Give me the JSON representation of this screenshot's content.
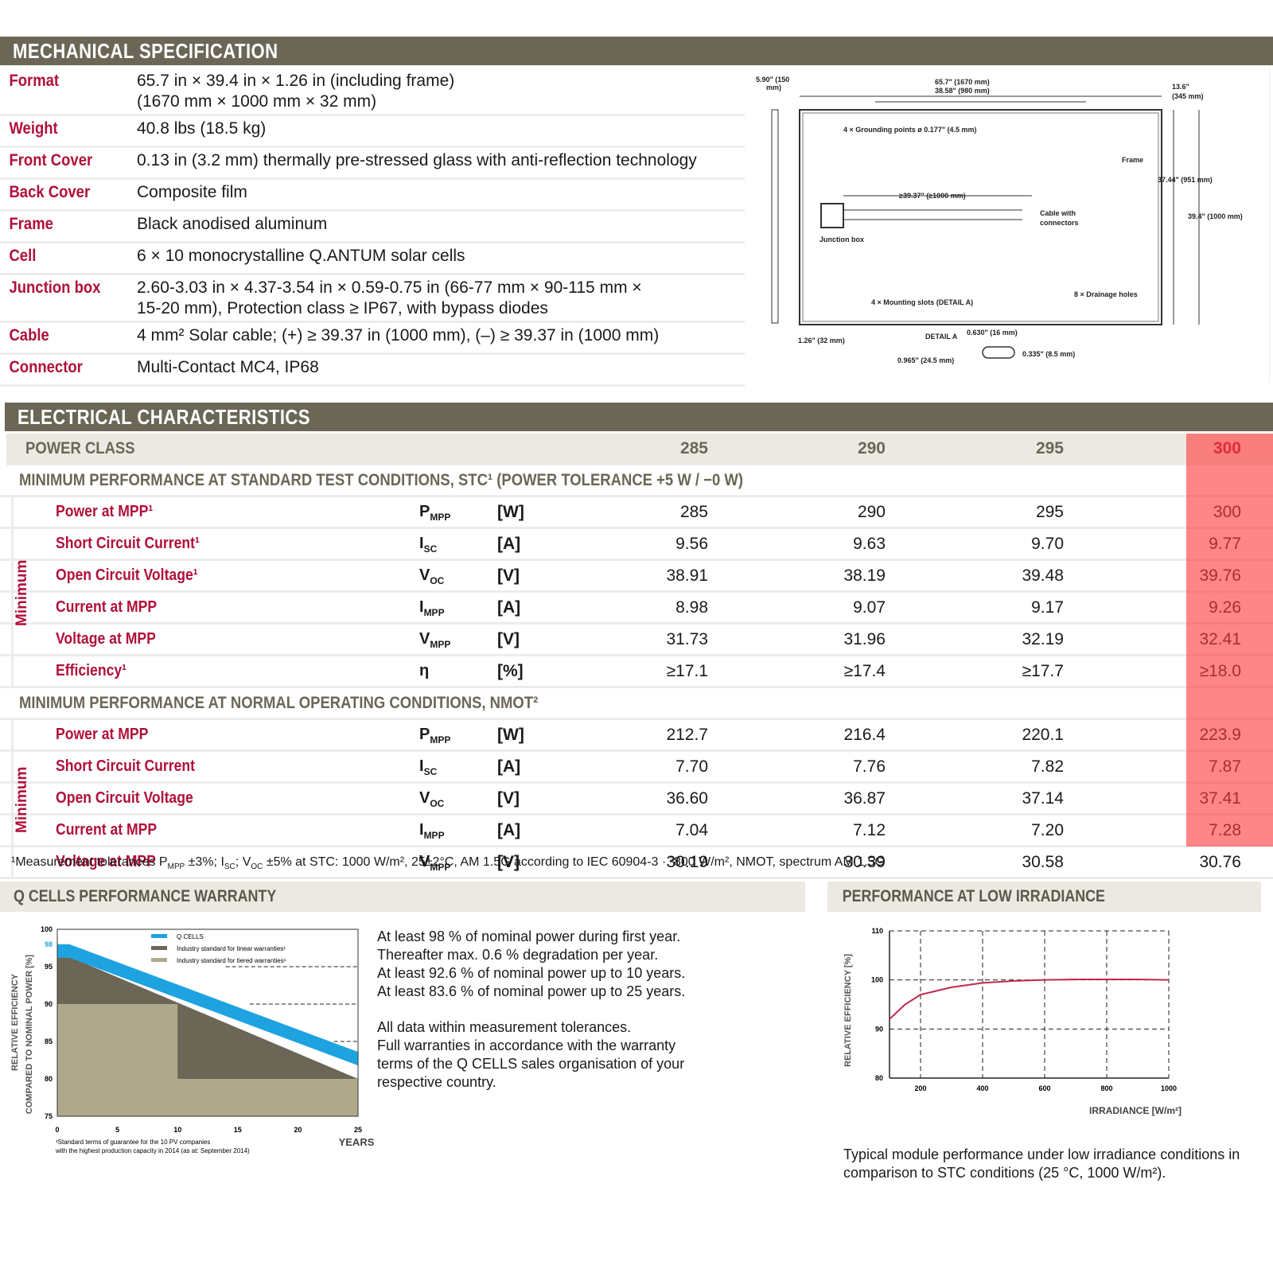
{
  "mechanical": {
    "title": "MECHANICAL SPECIFICATION",
    "rows": [
      {
        "key": "Format",
        "value": "65.7 in × 39.4 in × 1.26 in (including frame)",
        "value2": "(1670 mm × 1000 mm × 32 mm)"
      },
      {
        "key": "Weight",
        "value": "40.8 lbs (18.5 kg)"
      },
      {
        "key": "Front Cover",
        "value": "0.13 in (3.2 mm) thermally pre-stressed glass with anti-reflection technology"
      },
      {
        "key": "Back Cover",
        "value": "Composite film"
      },
      {
        "key": "Frame",
        "value": "Black anodised aluminum"
      },
      {
        "key": "Cell",
        "value": "6 × 10 monocrystalline Q.ANTUM solar cells"
      },
      {
        "key": "Junction box",
        "value": "2.60-3.03 in × 4.37-3.54 in × 0.59-0.75 in (66-77 mm × 90-115 mm ×",
        "value2": "15-20 mm), Protection class ≥ IP67, with bypass diodes"
      },
      {
        "key": "Cable",
        "value": "4 mm² Solar cable; (+) ≥ 39.37 in (1000 mm), (–) ≥ 39.37 in (1000 mm)"
      },
      {
        "key": "Connector",
        "value": "Multi-Contact MC4, IP68"
      }
    ],
    "diagram": {
      "thickness_label": "5.90\" (150",
      "thickness_label2": "mm)",
      "length_label": "65.7\" (1670 mm)",
      "inner_length_label": "38.58\" (980 mm)",
      "right_label": "13.6\"",
      "right_label2": "(345 mm)",
      "grounding": "4 × Grounding points ø 0.177\" (4.5 mm)",
      "frame": "Frame",
      "height_inner": "37.44\" (951 mm)",
      "height_outer": "39.4\" (1000 mm)",
      "cable_len": "≥39.37\" (≥1000 mm)",
      "cable_conn": "Cable with",
      "cable_conn2": "connectors",
      "junction": "Junction box",
      "mounting": "4 × Mounting slots (DETAIL A)",
      "drainage": "8 × Drainage holes",
      "frame_depth": "1.26\" (32 mm)",
      "detail": "DETAIL A",
      "detail_w": "0.630\" (16 mm)",
      "detail_h": "0.335\" (8.5 mm)",
      "detail_l": "0.965\" (24.5 mm)"
    }
  },
  "electrical": {
    "title": "ELECTRICAL CHARACTERISTICS",
    "power_class_label": "POWER CLASS",
    "classes": [
      "285",
      "290",
      "295",
      "300"
    ],
    "stc_heading": "MINIMUM PERFORMANCE AT STANDARD TEST CONDITIONS, STC¹ (POWER TOLERANCE +5 W / −0 W)",
    "nmot_heading": "MINIMUM PERFORMANCE AT NORMAL OPERATING CONDITIONS, NMOT²",
    "side_label": "Minimum",
    "stc_rows": [
      {
        "label": "Power at MPP¹",
        "sym": "P",
        "sub": "MPP",
        "unit": "[W]",
        "vals": [
          "285",
          "290",
          "295",
          "300"
        ]
      },
      {
        "label": "Short Circuit Current¹",
        "sym": "I",
        "sub": "SC",
        "unit": "[A]",
        "vals": [
          "9.56",
          "9.63",
          "9.70",
          "9.77"
        ]
      },
      {
        "label": "Open Circuit Voltage¹",
        "sym": "V",
        "sub": "OC",
        "unit": "[V]",
        "vals": [
          "38.91",
          "38.19",
          "39.48",
          "39.76"
        ]
      },
      {
        "label": "Current at MPP",
        "sym": "I",
        "sub": "MPP",
        "unit": "[A]",
        "vals": [
          "8.98",
          "9.07",
          "9.17",
          "9.26"
        ]
      },
      {
        "label": "Voltage at MPP",
        "sym": "V",
        "sub": "MPP",
        "unit": "[V]",
        "vals": [
          "31.73",
          "31.96",
          "32.19",
          "32.41"
        ]
      },
      {
        "label": "Efficiency¹",
        "sym": "η",
        "sub": "",
        "unit": "[%]",
        "vals": [
          "≥17.1",
          "≥17.4",
          "≥17.7",
          "≥18.0"
        ]
      }
    ],
    "nmot_rows": [
      {
        "label": "Power at MPP",
        "sym": "P",
        "sub": "MPP",
        "unit": "[W]",
        "vals": [
          "212.7",
          "216.4",
          "220.1",
          "223.9"
        ]
      },
      {
        "label": "Short Circuit Current",
        "sym": "I",
        "sub": "SC",
        "unit": "[A]",
        "vals": [
          "7.70",
          "7.76",
          "7.82",
          "7.87"
        ]
      },
      {
        "label": "Open Circuit Voltage",
        "sym": "V",
        "sub": "OC",
        "unit": "[V]",
        "vals": [
          "36.60",
          "36.87",
          "37.14",
          "37.41"
        ]
      },
      {
        "label": "Current at MPP",
        "sym": "I",
        "sub": "MPP",
        "unit": "[A]",
        "vals": [
          "7.04",
          "7.12",
          "7.20",
          "7.28"
        ]
      },
      {
        "label": "Voltage at MPP",
        "sym": "V",
        "sub": "MPP",
        "unit": "[V]",
        "vals": [
          "30.19",
          "30.39",
          "30.58",
          "30.76"
        ]
      }
    ],
    "footnote": "¹Measurement tolerances P",
    "footnote_sub": "MPP",
    "footnote_rest": " ±3%; I",
    "footnote_sub2": "SC",
    "footnote_rest2": "; V",
    "footnote_sub3": "OC",
    "footnote_rest3": " ±5% at STC: 1000 W/m², 25±2°C, AM 1.5G according to IEC 60904-3 · ²800 W/m², NMOT, spectrum AM 1.5G",
    "highlight_color": "#ff3c3c"
  },
  "warranty": {
    "title": "Q CELLS PERFORMANCE WARRANTY",
    "text_lines_1": [
      "At least 98 % of nominal power during first year.",
      "Thereafter max. 0.6 % degradation per year.",
      "At least 92.6 % of nominal power up to 10 years.",
      "At least 83.6 % of nominal power up to 25 years."
    ],
    "text_lines_2": [
      "All data within measurement tolerances.",
      "Full warranties in accordance with the warranty",
      "terms of the Q CELLS sales organisation of your",
      "respective country."
    ]
  },
  "lowirr": {
    "title": "PERFORMANCE AT LOW IRRADIANCE",
    "text_lines": [
      "Typical module performance under low irradiance conditions in",
      "comparison to STC conditions (25 °C, 1000 W/m²)."
    ]
  },
  "chart_data": [
    {
      "type": "area",
      "ylabel": "RELATIVE EFFICIENCY COMPARED TO NOMINAL POWER [%]",
      "ylabel_line1": "RELATIVE EFFICIENCY",
      "ylabel_line2": "COMPARED TO NOMINAL POWER [%]",
      "xlabel": "YEARS",
      "xlim": [
        0,
        25
      ],
      "ylim": [
        75,
        100
      ],
      "xticks": [
        "0",
        "5",
        "10",
        "15",
        "20",
        "25"
      ],
      "yticks": [
        "75",
        "80",
        "85",
        "90",
        "95",
        "100"
      ],
      "y_marker": "98",
      "legend": [
        "Q CELLS",
        "Industry standard for linear warranties¹",
        "Industry standard for tiered warranties¹"
      ],
      "series": [
        {
          "name": "Q CELLS",
          "color": "#1ea3e0",
          "x": [
            0,
            1,
            10,
            25
          ],
          "y": [
            98,
            98,
            92.6,
            83.6
          ]
        },
        {
          "name": "Industry standard for linear warranties¹",
          "color": "#6b6656",
          "x": [
            0,
            25
          ],
          "y": [
            97,
            80
          ]
        },
        {
          "name": "Industry standard for tiered warranties¹",
          "color": "#aea98a",
          "x": [
            0,
            10,
            10,
            25
          ],
          "y": [
            90,
            90,
            80,
            80
          ]
        }
      ],
      "footnote": "¹Standard terms of guarantee for the 10 PV companies",
      "footnote2": "with the highest production capacity in 2014 (as at: September 2014)"
    },
    {
      "type": "line",
      "ylabel": "RELATIVE EFFICIENCY [%]",
      "xlabel": "IRRADIANCE [W/m²]",
      "xlim": [
        100,
        1000
      ],
      "ylim": [
        80,
        110
      ],
      "xticks": [
        "200",
        "400",
        "600",
        "800",
        "1000"
      ],
      "yticks": [
        "80",
        "90",
        "100",
        "110"
      ],
      "grid": true,
      "series": [
        {
          "name": "",
          "color": "#c0284f",
          "x": [
            100,
            150,
            200,
            300,
            400,
            500,
            600,
            700,
            800,
            900,
            1000
          ],
          "y": [
            92,
            95,
            97,
            98.5,
            99.4,
            99.8,
            100,
            100.1,
            100.1,
            100.1,
            100
          ]
        }
      ]
    }
  ]
}
